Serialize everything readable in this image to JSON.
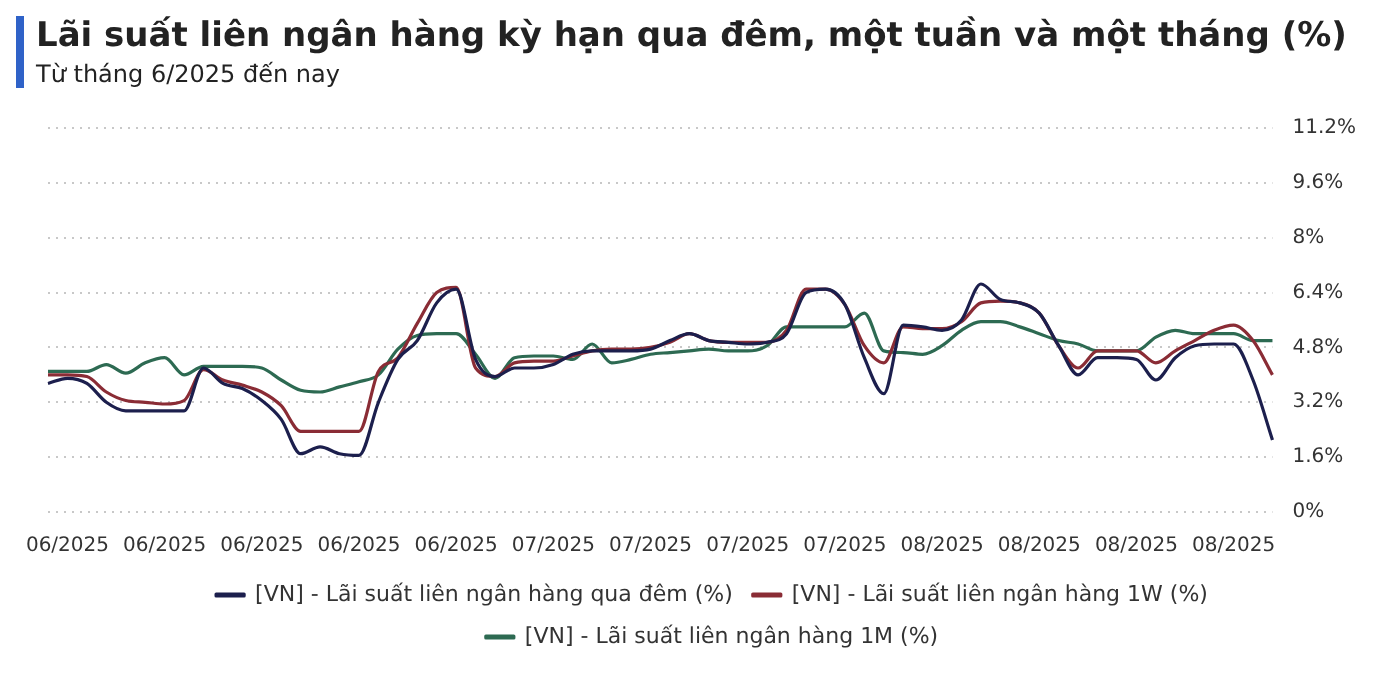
{
  "chart_data": {
    "type": "line",
    "title": "Lãi suất liên ngân hàng kỳ hạn qua đêm, một tuần và một tháng (%)",
    "subtitle": "Từ tháng 6/2025 đến nay",
    "categories": [
      null,
      "06/2025",
      null,
      null,
      null,
      null,
      "06/2025",
      null,
      null,
      null,
      null,
      "06/2025",
      null,
      null,
      null,
      null,
      "06/2025",
      null,
      null,
      null,
      null,
      "06/2025",
      null,
      null,
      null,
      null,
      "07/2025",
      null,
      null,
      null,
      null,
      "07/2025",
      null,
      null,
      null,
      null,
      "07/2025",
      null,
      null,
      null,
      null,
      "07/2025",
      null,
      null,
      null,
      null,
      "08/2025",
      null,
      null,
      null,
      null,
      "08/2025",
      null,
      null,
      null,
      null,
      "08/2025",
      null,
      null,
      null,
      null,
      "08/2025",
      null,
      null
    ],
    "series": [
      {
        "name": "[VN] - Lãi suất liên ngân hàng qua đêm (%)",
        "color": "#1c1f4d",
        "values": [
          3.75,
          3.9,
          3.75,
          3.2,
          2.95,
          2.95,
          2.95,
          2.95,
          4.2,
          3.75,
          3.6,
          3.25,
          2.7,
          1.7,
          1.9,
          1.7,
          1.65,
          3.2,
          4.45,
          5.0,
          6.1,
          6.5,
          4.45,
          3.95,
          4.2,
          4.2,
          4.3,
          4.6,
          4.7,
          4.7,
          4.7,
          4.75,
          5.0,
          5.2,
          5.0,
          4.95,
          4.9,
          4.95,
          5.2,
          6.4,
          6.5,
          6.05,
          4.5,
          3.45,
          5.45,
          5.4,
          5.3,
          5.6,
          6.65,
          6.2,
          6.1,
          5.8,
          4.85,
          4.0,
          4.5,
          4.5,
          4.45,
          3.85,
          4.5,
          4.85,
          4.9,
          4.9,
          3.85,
          2.1
        ]
      },
      {
        "name": "[VN] - Lãi suất liên ngân hàng 1W (%)",
        "color": "#8a2c35",
        "values": [
          4.0,
          4.0,
          3.95,
          3.5,
          3.25,
          3.2,
          3.15,
          3.25,
          4.15,
          3.85,
          3.7,
          3.5,
          3.1,
          2.35,
          2.35,
          2.35,
          2.35,
          4.1,
          4.5,
          5.5,
          6.4,
          6.55,
          4.2,
          3.95,
          4.35,
          4.4,
          4.4,
          4.55,
          4.7,
          4.75,
          4.75,
          4.8,
          4.95,
          5.2,
          5.0,
          4.95,
          4.95,
          4.95,
          5.3,
          6.5,
          6.5,
          6.05,
          4.85,
          4.35,
          5.4,
          5.35,
          5.35,
          5.55,
          6.1,
          6.15,
          6.1,
          5.8,
          4.85,
          4.2,
          4.7,
          4.7,
          4.7,
          4.35,
          4.7,
          5.0,
          5.3,
          5.45,
          5.0,
          4.0
        ]
      },
      {
        "name": "[VN] - Lãi suất liên ngân hàng 1M (%)",
        "color": "#2d6a52",
        "values": [
          4.1,
          4.1,
          4.1,
          4.3,
          4.05,
          4.35,
          4.5,
          4.0,
          4.25,
          4.25,
          4.25,
          4.2,
          3.85,
          3.55,
          3.5,
          3.65,
          3.8,
          4.0,
          4.75,
          5.15,
          5.2,
          5.2,
          4.6,
          3.9,
          4.5,
          4.55,
          4.55,
          4.45,
          4.9,
          4.35,
          4.45,
          4.6,
          4.65,
          4.7,
          4.75,
          4.7,
          4.7,
          4.85,
          5.4,
          5.4,
          5.4,
          5.4,
          5.8,
          4.7,
          4.65,
          4.6,
          4.85,
          5.3,
          5.55,
          5.55,
          5.4,
          5.2,
          5.0,
          4.9,
          4.7,
          4.7,
          4.7,
          5.1,
          5.3,
          5.2,
          5.2,
          5.2,
          5.0,
          5.0
        ]
      }
    ],
    "ylim": [
      0,
      11.2
    ],
    "yticks": [
      {
        "value": 0,
        "label": "0%"
      },
      {
        "value": 1.6,
        "label": "1.6%"
      },
      {
        "value": 3.2,
        "label": "3.2%"
      },
      {
        "value": 4.8,
        "label": "4.8%"
      },
      {
        "value": 6.4,
        "label": "6.4%"
      },
      {
        "value": 8,
        "label": "8%"
      },
      {
        "value": 9.6,
        "label": "9.6%"
      },
      {
        "value": 11.2,
        "label": "11.2%"
      }
    ],
    "grid": "y",
    "legend": "bottom",
    "marker": "none",
    "line_style": "solid"
  }
}
